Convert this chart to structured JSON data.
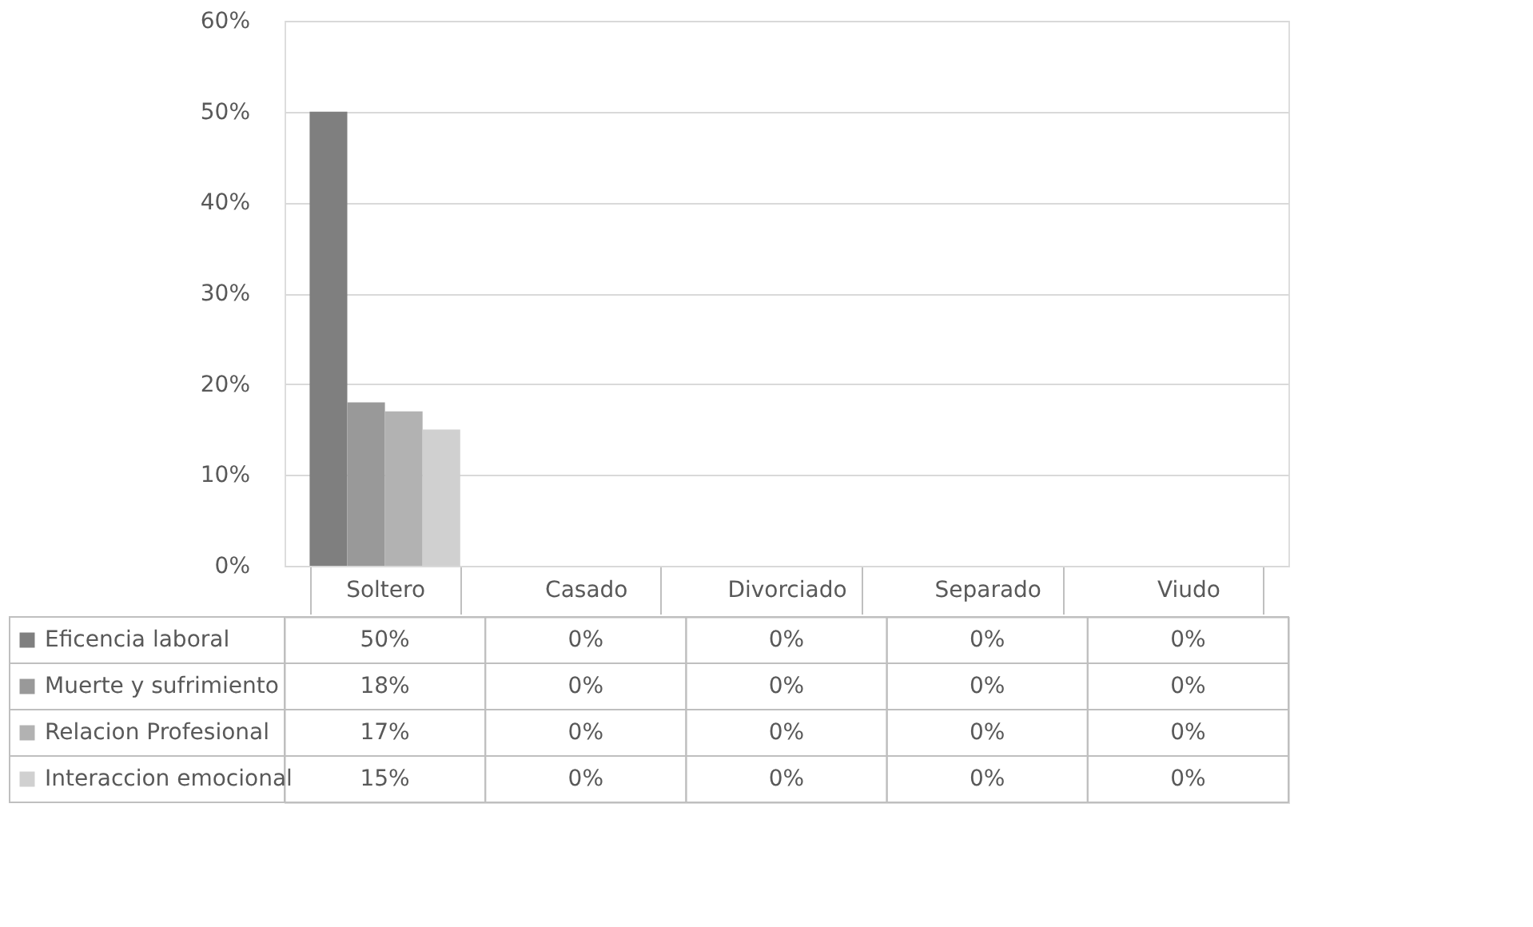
{
  "chart_data": {
    "type": "bar",
    "categories": [
      "Soltero",
      "Casado",
      "Divorciado",
      "Separado",
      "Viudo"
    ],
    "series": [
      {
        "name": "Eficencia laboral",
        "color": "#7f7f7f",
        "values": [
          50,
          0,
          0,
          0,
          0
        ],
        "value_labels": [
          "50%",
          "0%",
          "0%",
          "0%",
          "0%"
        ]
      },
      {
        "name": "Muerte y sufrimiento",
        "color": "#999999",
        "values": [
          18,
          0,
          0,
          0,
          0
        ],
        "value_labels": [
          "18%",
          "0%",
          "0%",
          "0%",
          "0%"
        ]
      },
      {
        "name": "Relacion Profesional",
        "color": "#b2b2b2",
        "values": [
          17,
          0,
          0,
          0,
          0
        ],
        "value_labels": [
          "17%",
          "0%",
          "0%",
          "0%",
          "0%"
        ]
      },
      {
        "name": "Interaccion emocional",
        "color": "#d0d0d0",
        "values": [
          15,
          0,
          0,
          0,
          0
        ],
        "value_labels": [
          "15%",
          "0%",
          "0%",
          "0%",
          "0%"
        ]
      }
    ],
    "ylim": [
      0,
      60
    ],
    "yticks": [
      {
        "value": 0,
        "label": "0%"
      },
      {
        "value": 10,
        "label": "10%"
      },
      {
        "value": 20,
        "label": "20%"
      },
      {
        "value": 30,
        "label": "30%"
      },
      {
        "value": 40,
        "label": "40%"
      },
      {
        "value": 50,
        "label": "50%"
      },
      {
        "value": 60,
        "label": "60%"
      }
    ],
    "grid": "y",
    "legend": "left"
  }
}
